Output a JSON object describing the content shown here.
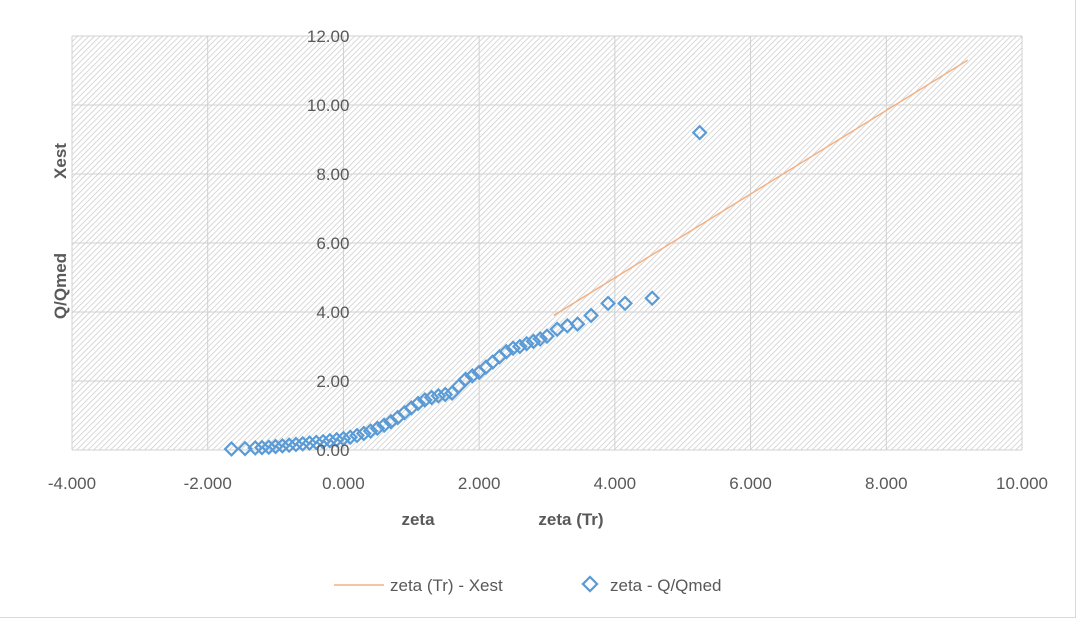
{
  "chart_data": {
    "type": "scatter",
    "xlim": [
      -4,
      10
    ],
    "ylim": [
      0,
      12
    ],
    "x_ticks": [
      "-4.000",
      "-2.000",
      "0.000",
      "2.000",
      "4.000",
      "6.000",
      "8.000",
      "10.000"
    ],
    "y_ticks": [
      "0.00",
      "2.00",
      "4.00",
      "6.00",
      "8.00",
      "10.00",
      "12.00"
    ],
    "xlabel": [
      "zeta",
      "zeta (Tr)"
    ],
    "ylabel": [
      "Q/Qmed",
      "Xest"
    ],
    "grid": true,
    "legend_position": "bottom",
    "legend": [
      "zeta (Tr) - Xest",
      "zeta - Q/Qmed"
    ],
    "series": [
      {
        "name": "zeta (Tr) - Xest",
        "style": "line",
        "color": "#f4b183",
        "points": [
          [
            3.1,
            3.9
          ],
          [
            9.2,
            11.3
          ]
        ]
      },
      {
        "name": "zeta - Q/Qmed",
        "style": "marker",
        "marker": "diamond",
        "color": "#5b9bd5",
        "points": [
          [
            -1.65,
            0.03
          ],
          [
            -1.45,
            0.04
          ],
          [
            -1.3,
            0.06
          ],
          [
            -1.2,
            0.07
          ],
          [
            -1.1,
            0.08
          ],
          [
            -1.0,
            0.1
          ],
          [
            -0.9,
            0.12
          ],
          [
            -0.8,
            0.14
          ],
          [
            -0.7,
            0.16
          ],
          [
            -0.6,
            0.18
          ],
          [
            -0.5,
            0.2
          ],
          [
            -0.4,
            0.22
          ],
          [
            -0.3,
            0.24
          ],
          [
            -0.2,
            0.27
          ],
          [
            -0.1,
            0.3
          ],
          [
            0.0,
            0.33
          ],
          [
            0.1,
            0.37
          ],
          [
            0.2,
            0.42
          ],
          [
            0.3,
            0.48
          ],
          [
            0.4,
            0.55
          ],
          [
            0.5,
            0.63
          ],
          [
            0.6,
            0.72
          ],
          [
            0.7,
            0.82
          ],
          [
            0.8,
            0.94
          ],
          [
            0.9,
            1.08
          ],
          [
            1.0,
            1.22
          ],
          [
            1.1,
            1.35
          ],
          [
            1.2,
            1.45
          ],
          [
            1.3,
            1.52
          ],
          [
            1.4,
            1.57
          ],
          [
            1.5,
            1.61
          ],
          [
            1.6,
            1.65
          ],
          [
            1.7,
            1.85
          ],
          [
            1.8,
            2.05
          ],
          [
            1.9,
            2.15
          ],
          [
            2.0,
            2.25
          ],
          [
            2.1,
            2.4
          ],
          [
            2.2,
            2.55
          ],
          [
            2.3,
            2.7
          ],
          [
            2.4,
            2.85
          ],
          [
            2.5,
            2.95
          ],
          [
            2.6,
            3.0
          ],
          [
            2.7,
            3.08
          ],
          [
            2.8,
            3.15
          ],
          [
            2.9,
            3.22
          ],
          [
            3.0,
            3.3
          ],
          [
            3.15,
            3.5
          ],
          [
            3.3,
            3.6
          ],
          [
            3.45,
            3.65
          ],
          [
            3.65,
            3.9
          ],
          [
            3.9,
            4.25
          ],
          [
            4.15,
            4.25
          ],
          [
            4.55,
            4.4
          ],
          [
            5.25,
            9.2
          ]
        ]
      }
    ]
  }
}
